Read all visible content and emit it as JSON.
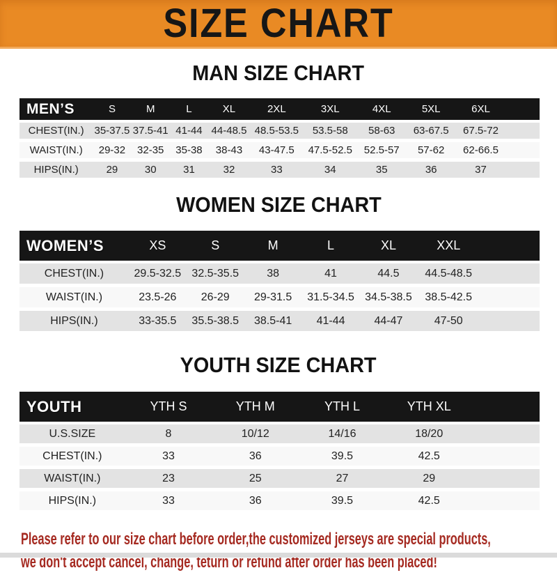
{
  "banner": {
    "title": "SIZE CHART"
  },
  "sections": [
    {
      "id": "men",
      "heading": "MAN SIZE CHART",
      "header_label": "MEN’S",
      "columns": [
        "S",
        "M",
        "L",
        "XL",
        "2XL",
        "3XL",
        "4XL",
        "5XL",
        "6XL"
      ],
      "rows": [
        {
          "label": "CHEST(IN.)",
          "values": [
            "35-37.5",
            "37.5-41",
            "41-44",
            "44-48.5",
            "48.5-53.5",
            "53.5-58",
            "58-63",
            "63-67.5",
            "67.5-72"
          ]
        },
        {
          "label": "WAIST(IN.)",
          "values": [
            "29-32",
            "32-35",
            "35-38",
            "38-43",
            "43-47.5",
            "47.5-52.5",
            "52.5-57",
            "57-62",
            "62-66.5"
          ]
        },
        {
          "label": "HIPS(IN.)",
          "values": [
            "29",
            "30",
            "31",
            "32",
            "33",
            "34",
            "35",
            "36",
            "37"
          ]
        }
      ]
    },
    {
      "id": "women",
      "heading": "WOMEN SIZE CHART",
      "header_label": "WOMEN’S",
      "columns": [
        "XS",
        "S",
        "M",
        "L",
        "XL",
        "XXL"
      ],
      "rows": [
        {
          "label": "CHEST(IN.)",
          "values": [
            "29.5-32.5",
            "32.5-35.5",
            "38",
            "41",
            "44.5",
            "44.5-48.5"
          ]
        },
        {
          "label": "WAIST(IN.)",
          "values": [
            "23.5-26",
            "26-29",
            "29-31.5",
            "31.5-34.5",
            "34.5-38.5",
            "38.5-42.5"
          ]
        },
        {
          "label": "HIPS(IN.)",
          "values": [
            "33-35.5",
            "35.5-38.5",
            "38.5-41",
            "41-44",
            "44-47",
            "47-50"
          ]
        }
      ]
    },
    {
      "id": "youth",
      "heading": "YOUTH SIZE CHART",
      "header_label": "YOUTH",
      "columns": [
        "YTH S",
        "YTH M",
        "YTH L",
        "YTH XL"
      ],
      "rows": [
        {
          "label": "U.S.SIZE",
          "values": [
            "8",
            "10/12",
            "14/16",
            "18/20"
          ]
        },
        {
          "label": "CHEST(IN.)",
          "values": [
            "33",
            "36",
            "39.5",
            "42.5"
          ]
        },
        {
          "label": "WAIST(IN.)",
          "values": [
            "23",
            "25",
            "27",
            "29"
          ]
        },
        {
          "label": "HIPS(IN.)",
          "values": [
            "33",
            "36",
            "39.5",
            "42.5"
          ]
        }
      ]
    }
  ],
  "footer": {
    "line1": "Please refer to our size chart before order,the customized jerseys are special products,",
    "line2": "we don't accept cancel, change, teturn or refund after order has been placed!"
  },
  "colors": {
    "banner_orange": "#E98A24",
    "table_header_black": "#161616",
    "row_gray": "#E3E3E3",
    "footer_red": "#A52A21"
  }
}
